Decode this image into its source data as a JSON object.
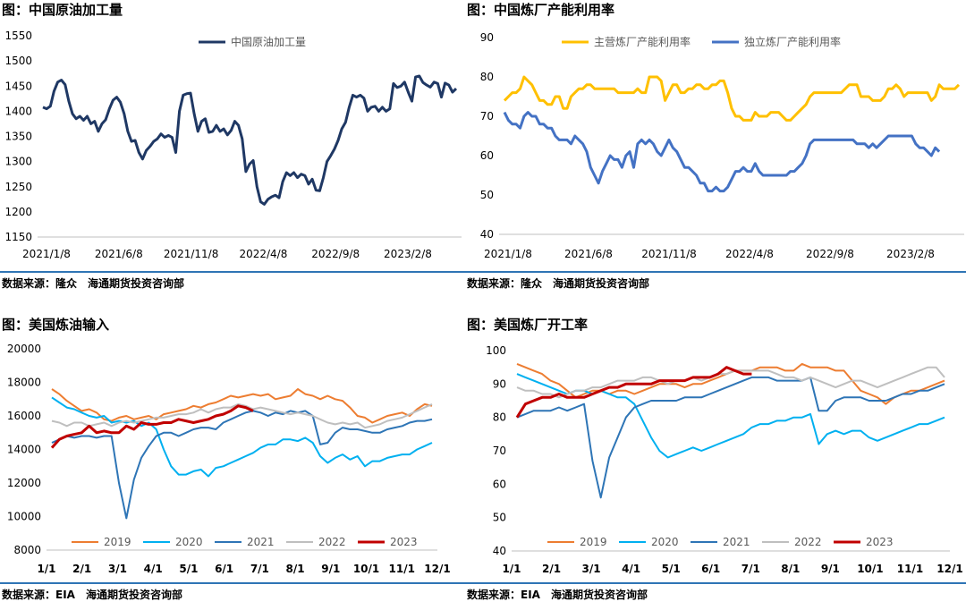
{
  "chart_data": [
    {
      "type": "line",
      "title": "图：中国原油加工量",
      "source": "数据来源：隆众　海通期货投资咨询部",
      "x_ticks": [
        "2021/1/8",
        "2021/6/8",
        "2021/11/8",
        "2022/4/8",
        "2022/9/8",
        "2023/2/8"
      ],
      "y_ticks": [
        "1150",
        "1200",
        "1250",
        "1300",
        "1350",
        "1400",
        "1450",
        "1500",
        "1550"
      ],
      "ylim": [
        1150,
        1550
      ],
      "series": [
        {
          "name": "中国原油加工量",
          "color": "#1f3864",
          "values": [
            1408,
            1405,
            1410,
            1440,
            1458,
            1462,
            1453,
            1420,
            1395,
            1385,
            1390,
            1382,
            1390,
            1375,
            1380,
            1360,
            1375,
            1383,
            1405,
            1422,
            1428,
            1418,
            1395,
            1360,
            1340,
            1342,
            1318,
            1305,
            1322,
            1330,
            1340,
            1345,
            1355,
            1348,
            1352,
            1348,
            1318,
            1400,
            1432,
            1435,
            1436,
            1395,
            1360,
            1380,
            1385,
            1358,
            1360,
            1372,
            1360,
            1365,
            1353,
            1362,
            1380,
            1372,
            1345,
            1280,
            1295,
            1302,
            1250,
            1220,
            1215,
            1225,
            1230,
            1233,
            1228,
            1260,
            1278,
            1272,
            1278,
            1268,
            1275,
            1272,
            1255,
            1265,
            1243,
            1242,
            1268,
            1300,
            1312,
            1325,
            1342,
            1365,
            1378,
            1408,
            1432,
            1428,
            1432,
            1426,
            1400,
            1408,
            1410,
            1400,
            1408,
            1400,
            1405,
            1455,
            1447,
            1450,
            1458,
            1438,
            1420,
            1468,
            1470,
            1457,
            1452,
            1448,
            1458,
            1455,
            1428,
            1456,
            1452,
            1438,
            1445
          ]
        }
      ]
    },
    {
      "type": "line",
      "title": "图：中国炼厂产能利用率",
      "source": "数据来源：隆众　海通期货投资咨询部",
      "x_ticks": [
        "2021/1/8",
        "2021/6/8",
        "2021/11/8",
        "2022/4/8",
        "2022/9/8",
        "2023/2/8"
      ],
      "y_ticks": [
        "40",
        "50",
        "60",
        "70",
        "80",
        "90"
      ],
      "ylim": [
        40,
        90
      ],
      "series": [
        {
          "name": "主营炼厂产能利用率",
          "color": "#ffc000",
          "values": [
            74,
            75,
            76,
            76,
            77,
            80,
            79,
            78,
            76,
            74,
            74,
            73,
            73,
            75,
            75,
            72,
            72,
            75,
            76,
            77,
            77,
            78,
            78,
            77,
            77,
            77,
            77,
            77,
            77,
            76,
            76,
            76,
            76,
            76,
            77,
            76,
            76,
            80,
            80,
            80,
            79,
            74,
            76,
            78,
            78,
            76,
            76,
            77,
            77,
            78,
            78,
            77,
            77,
            78,
            78,
            79,
            79,
            76,
            72,
            70,
            70,
            69,
            69,
            69,
            71,
            70,
            70,
            70,
            71,
            71,
            71,
            70,
            69,
            69,
            70,
            71,
            72,
            73,
            75,
            76,
            76,
            76,
            76,
            76,
            76,
            76,
            76,
            77,
            78,
            78,
            78,
            75,
            75,
            75,
            74,
            74,
            74,
            75,
            77,
            77,
            78,
            77,
            75,
            76,
            76,
            76,
            76,
            76,
            76,
            74,
            75,
            78,
            77,
            77,
            77,
            77,
            78
          ]
        },
        {
          "name": "独立炼厂产能利用率",
          "color": "#4472c4",
          "values": [
            71,
            69,
            68,
            68,
            67,
            70,
            71,
            70,
            70,
            68,
            68,
            67,
            67,
            65,
            64,
            64,
            64,
            63,
            65,
            64,
            63,
            61,
            57,
            55,
            53,
            56,
            58,
            60,
            59,
            59,
            57,
            60,
            61,
            57,
            63,
            64,
            63,
            64,
            63,
            61,
            60,
            62,
            64,
            62,
            61,
            59,
            57,
            57,
            56,
            55,
            53,
            53,
            51,
            51,
            52,
            51,
            51,
            52,
            54,
            56,
            56,
            57,
            56,
            56,
            58,
            56,
            55,
            55,
            55,
            55,
            55,
            55,
            55,
            56,
            56,
            57,
            58,
            60,
            63,
            64,
            64,
            64,
            64,
            64,
            64,
            64,
            64,
            64,
            64,
            64,
            63,
            63,
            63,
            62,
            63,
            62,
            63,
            64,
            65,
            65,
            65,
            65,
            65,
            65,
            65,
            63,
            62,
            62,
            61,
            60,
            62,
            61
          ]
        }
      ]
    },
    {
      "type": "line",
      "title": "图：美国炼油输入",
      "source": "数据来源：EIA　海通期货投资咨询部",
      "x_ticks": [
        "1/1",
        "2/1",
        "3/1",
        "4/1",
        "5/1",
        "6/1",
        "7/1",
        "8/1",
        "9/1",
        "10/1",
        "11/1",
        "12/1"
      ],
      "y_ticks": [
        "8000",
        "10000",
        "12000",
        "14000",
        "16000",
        "18000",
        "20000"
      ],
      "ylim": [
        8000,
        20000
      ],
      "series": [
        {
          "name": "2019",
          "color": "#ed7d31",
          "values": [
            17600,
            17300,
            16900,
            16600,
            16300,
            16400,
            16200,
            15800,
            15700,
            15900,
            16000,
            15800,
            15900,
            16000,
            15800,
            16100,
            16200,
            16300,
            16400,
            16600,
            16500,
            16700,
            16800,
            17000,
            17200,
            17100,
            17200,
            17300,
            17200,
            17300,
            17000,
            17100,
            17200,
            17600,
            17300,
            17200,
            17000,
            17200,
            17000,
            16900,
            16500,
            16000,
            15900,
            15600,
            15800,
            16000,
            16100,
            16200,
            16000,
            16400,
            16700,
            16600
          ]
        },
        {
          "name": "2020",
          "color": "#00b0f0",
          "values": [
            17100,
            16800,
            16500,
            16400,
            16200,
            16000,
            15900,
            16000,
            15600,
            15700,
            15600,
            15700,
            15400,
            15600,
            15200,
            14000,
            13000,
            12500,
            12500,
            12700,
            12800,
            12400,
            12900,
            13000,
            13200,
            13400,
            13600,
            13800,
            14100,
            14300,
            14300,
            14600,
            14600,
            14500,
            14700,
            14400,
            13600,
            13200,
            13500,
            13700,
            13400,
            13600,
            13000,
            13300,
            13300,
            13500,
            13600,
            13700,
            13700,
            14000,
            14200,
            14400
          ]
        },
        {
          "name": "2021",
          "color": "#2e75b6",
          "values": [
            14400,
            14600,
            14800,
            14700,
            14800,
            14800,
            14700,
            14800,
            14800,
            12000,
            9900,
            12200,
            13500,
            14200,
            14800,
            15000,
            15000,
            14800,
            15000,
            15200,
            15300,
            15300,
            15200,
            15600,
            15800,
            16000,
            16200,
            16300,
            16200,
            16000,
            16200,
            16100,
            16300,
            16200,
            16300,
            16000,
            14300,
            14400,
            15000,
            15300,
            15200,
            15200,
            15100,
            15000,
            15000,
            15200,
            15300,
            15400,
            15600,
            15700,
            15700,
            15800
          ]
        },
        {
          "name": "2022",
          "color": "#bfbfbf",
          "values": [
            15700,
            15600,
            15400,
            15600,
            15600,
            15400,
            15500,
            15600,
            15400,
            15600,
            15700,
            15600,
            15700,
            15800,
            15900,
            15900,
            16000,
            16100,
            16100,
            16200,
            16400,
            16200,
            16400,
            16500,
            16500,
            16700,
            16600,
            16400,
            16500,
            16400,
            16300,
            16200,
            16100,
            16200,
            16100,
            16000,
            15800,
            15600,
            15500,
            15600,
            15500,
            15600,
            15300,
            15400,
            15500,
            15700,
            15800,
            15900,
            16100,
            16300,
            16500,
            16700
          ]
        },
        {
          "name": "2023",
          "color": "#c00000",
          "values": [
            14100,
            14600,
            14800,
            14900,
            15000,
            15400,
            15000,
            15100,
            15000,
            15000,
            15400,
            15200,
            15600,
            15500,
            15500,
            15600,
            15600,
            15800,
            15700,
            15600,
            15700,
            15800,
            16000,
            16100,
            16300,
            16600,
            16500,
            16300
          ]
        }
      ]
    },
    {
      "type": "line",
      "title": "图：美国炼厂开工率",
      "source": "数据来源：EIA　海通期货投资咨询部",
      "x_ticks": [
        "1/1",
        "2/1",
        "3/1",
        "4/1",
        "5/1",
        "6/1",
        "7/1",
        "8/1",
        "9/1",
        "10/1",
        "11/1",
        "12/1"
      ],
      "y_ticks": [
        "40",
        "50",
        "60",
        "70",
        "80",
        "90",
        "100"
      ],
      "ylim": [
        40,
        100
      ],
      "series": [
        {
          "name": "2019",
          "color": "#ed7d31",
          "values": [
            96,
            95,
            94,
            93,
            91,
            90,
            88,
            86,
            87,
            88,
            88,
            87,
            88,
            88,
            87,
            88,
            89,
            90,
            90,
            90,
            89,
            90,
            90,
            91,
            92,
            93,
            94,
            94,
            94,
            95,
            95,
            95,
            94,
            94,
            96,
            95,
            95,
            95,
            94,
            94,
            91,
            88,
            87,
            86,
            84,
            86,
            87,
            88,
            88,
            89,
            90,
            91
          ]
        },
        {
          "name": "2020",
          "color": "#00b0f0",
          "values": [
            93,
            92,
            91,
            90,
            89,
            88,
            87,
            88,
            88,
            87,
            88,
            87,
            86,
            86,
            84,
            79,
            74,
            70,
            68,
            69,
            70,
            71,
            70,
            71,
            72,
            73,
            74,
            75,
            77,
            78,
            78,
            79,
            79,
            80,
            80,
            81,
            72,
            75,
            76,
            75,
            76,
            76,
            74,
            73,
            74,
            75,
            76,
            77,
            78,
            78,
            79,
            80
          ]
        },
        {
          "name": "2021",
          "color": "#2e75b6",
          "values": [
            80,
            81,
            82,
            82,
            82,
            83,
            82,
            83,
            84,
            67,
            56,
            68,
            74,
            80,
            83,
            84,
            85,
            85,
            85,
            85,
            86,
            86,
            86,
            87,
            88,
            89,
            90,
            91,
            92,
            92,
            92,
            91,
            91,
            91,
            91,
            92,
            82,
            82,
            85,
            86,
            86,
            86,
            85,
            85,
            85,
            86,
            87,
            87,
            88,
            88,
            89,
            90
          ]
        },
        {
          "name": "2022",
          "color": "#bfbfbf",
          "values": [
            89,
            88,
            88,
            87,
            87,
            86,
            87,
            88,
            88,
            89,
            89,
            90,
            91,
            91,
            91,
            92,
            92,
            91,
            90,
            91,
            91,
            92,
            91,
            92,
            93,
            93,
            94,
            94,
            94,
            94,
            94,
            93,
            92,
            92,
            91,
            92,
            91,
            90,
            89,
            90,
            91,
            91,
            90,
            89,
            90,
            91,
            92,
            93,
            94,
            95,
            95,
            92
          ]
        },
        {
          "name": "2023",
          "color": "#c00000",
          "values": [
            80,
            84,
            85,
            86,
            86,
            87,
            86,
            86,
            86,
            87,
            88,
            89,
            89,
            90,
            90,
            90,
            90,
            91,
            91,
            91,
            91,
            92,
            92,
            92,
            93,
            95,
            94,
            93,
            93
          ]
        }
      ]
    }
  ]
}
